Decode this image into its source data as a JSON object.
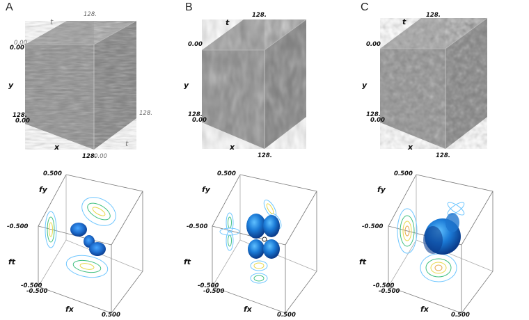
{
  "panels": [
    {
      "letter": "A",
      "cube": {
        "x_label": "x",
        "y_label": "y",
        "t_label": "t",
        "t_label_rear": "t",
        "origin_top": "0.00",
        "origin_top_gray": "0.00",
        "y_end": "128.",
        "y_end2": "0.00",
        "x_end": "128.",
        "x_end2": "0.00",
        "t_end": "128.",
        "t_end_top": "128."
      },
      "spectrum": {
        "fx_label": "fx",
        "fy_label": "fy",
        "ft_label": "ft",
        "fy_top": "0.500",
        "fy_mid": "-0.500",
        "ft_bottom": "-0.500",
        "ft_bottom2": "-0.500",
        "fx_end": "0.500"
      }
    },
    {
      "letter": "B",
      "cube": {
        "x_label": "x",
        "y_label": "y",
        "t_label": "t",
        "origin_top": "0.00",
        "y_end": "128.",
        "y_end2": "0.00",
        "x_end": "128.",
        "t_end_top": "128."
      },
      "spectrum": {
        "fx_label": "fx",
        "fy_label": "fy",
        "ft_label": "ft",
        "fy_top": "0.500",
        "fy_mid": "-0.500",
        "ft_bottom": "-0.500",
        "ft_bottom2": "-0.500",
        "fx_end": "0.500"
      }
    },
    {
      "letter": "C",
      "cube": {
        "x_label": "x",
        "y_label": "y",
        "t_label": "t",
        "origin_top": "0.00",
        "y_end": "128.",
        "y_end2": "0.00",
        "x_end": "128.",
        "t_end_top": "128."
      },
      "spectrum": {
        "fx_label": "fx",
        "fy_label": "fy",
        "ft_label": "ft",
        "fy_top": "0.500",
        "fy_mid": "-0.500",
        "ft_bottom": "-0.500",
        "ft_bottom2": "-0.500",
        "fx_end": "0.500"
      }
    }
  ],
  "colors": {
    "cube_top": "#9a9a9a",
    "cube_left": "#8a8a8a",
    "cube_right": "#7e7e7e",
    "blob_dark": "#0b3d8f",
    "blob_mid": "#1f77d0",
    "contour_outer": "#6ec6ff",
    "contour_mid": "#3fbf7f",
    "contour_inner": "#e8d84a",
    "axis_line": "#555555"
  }
}
